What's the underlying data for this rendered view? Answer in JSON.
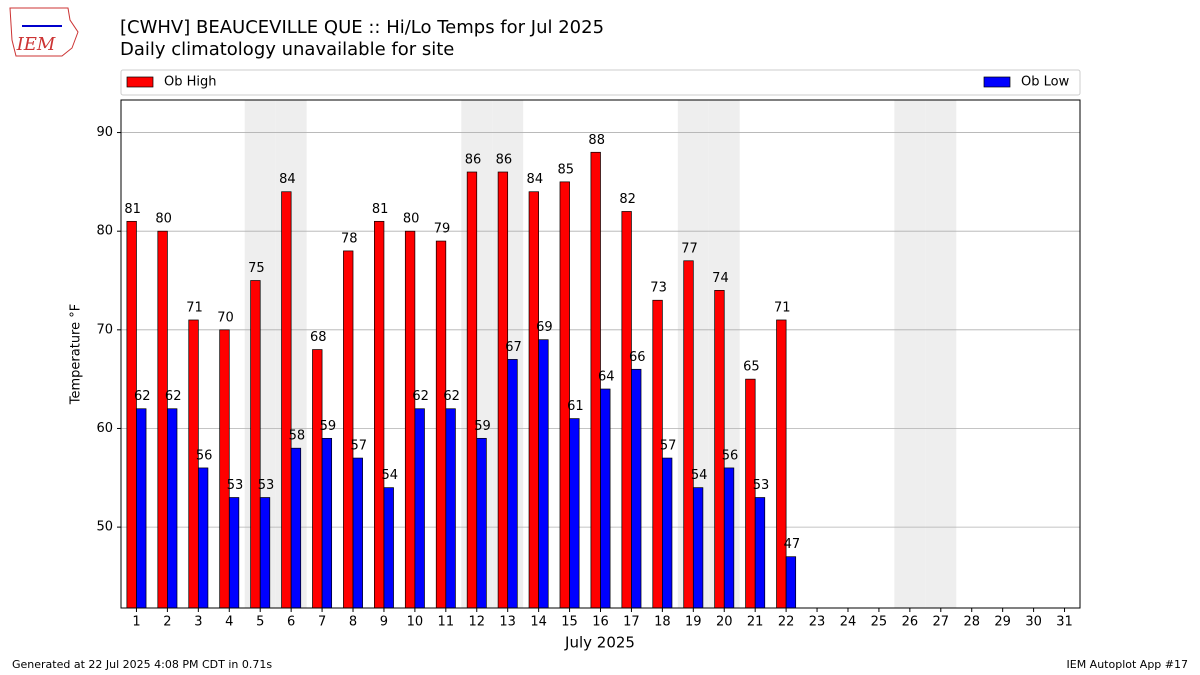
{
  "chart_data": {
    "type": "bar",
    "title": "[CWHV] BEAUCEVILLE  QUE :: Hi/Lo Temps for Jul 2025",
    "subtitle": "Daily climatology unavailable for site",
    "logo_text": "IEM",
    "x_label": "July 2025",
    "y_label": "Temperature °F",
    "categories": [
      "1",
      "2",
      "3",
      "4",
      "5",
      "6",
      "7",
      "8",
      "9",
      "10",
      "11",
      "12",
      "13",
      "14",
      "15",
      "16",
      "17",
      "18",
      "19",
      "20",
      "21",
      "22",
      "23",
      "24",
      "25",
      "26",
      "27",
      "28",
      "29",
      "30",
      "31"
    ],
    "series": [
      {
        "name": "Ob High",
        "color": "#ff0000",
        "values": [
          81,
          80,
          71,
          70,
          75,
          84,
          68,
          78,
          81,
          80,
          79,
          86,
          86,
          84,
          85,
          88,
          82,
          73,
          77,
          74,
          65,
          71,
          null,
          null,
          null,
          null,
          null,
          null,
          null,
          null,
          null
        ]
      },
      {
        "name": "Ob Low",
        "color": "#0000ff",
        "values": [
          62,
          62,
          56,
          53,
          53,
          58,
          59,
          57,
          54,
          62,
          62,
          59,
          67,
          69,
          61,
          64,
          66,
          57,
          54,
          56,
          53,
          47,
          null,
          null,
          null,
          null,
          null,
          null,
          null,
          null,
          null
        ]
      }
    ],
    "shaded_days": [
      5,
      6,
      12,
      13,
      19,
      20,
      26,
      27
    ],
    "shade_color": "#eeeeee",
    "ylim": [
      41.8,
      93.3
    ],
    "yticks": [
      50,
      60,
      70,
      80,
      90
    ],
    "grid": true,
    "legend": "top",
    "footer_left": "Generated at 22 Jul 2025 4:08 PM CDT in 0.71s",
    "footer_right": "IEM Autoplot App #17"
  }
}
